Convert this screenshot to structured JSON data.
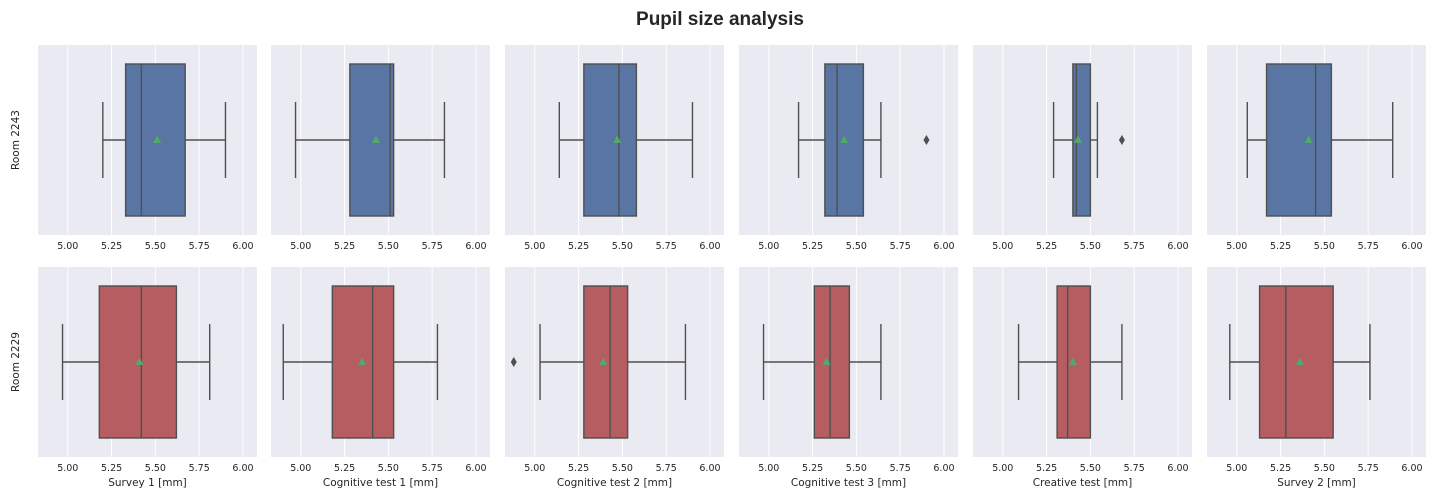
{
  "title": "Pupil size analysis",
  "chart_data": {
    "type": "box",
    "title": "Pupil size analysis",
    "xlim": [
      4.83,
      6.08
    ],
    "xticks": [
      "5.00",
      "5.25",
      "5.50",
      "5.75",
      "6.00"
    ],
    "xtick_values": [
      5.0,
      5.25,
      5.5,
      5.75,
      6.0
    ],
    "grid": true,
    "columns": [
      "Survey 1 [mm]",
      "Cognitive test 1 [mm]",
      "Cognitive test 2 [mm]",
      "Cognitive test 3 [mm]",
      "Creative test [mm]",
      "Survey 2 [mm]"
    ],
    "rows": [
      {
        "label": "Room 2243",
        "color": "#5875a4",
        "boxes": [
          {
            "whisker_low": 5.2,
            "q1": 5.33,
            "median": 5.42,
            "q3": 5.67,
            "whisker_high": 5.9,
            "mean": 5.51,
            "outliers": []
          },
          {
            "whisker_low": 4.97,
            "q1": 5.28,
            "median": 5.51,
            "q3": 5.53,
            "whisker_high": 5.82,
            "mean": 5.43,
            "outliers": []
          },
          {
            "whisker_low": 5.14,
            "q1": 5.28,
            "median": 5.48,
            "q3": 5.58,
            "whisker_high": 5.9,
            "mean": 5.47,
            "outliers": []
          },
          {
            "whisker_low": 5.17,
            "q1": 5.32,
            "median": 5.39,
            "q3": 5.54,
            "whisker_high": 5.64,
            "mean": 5.43,
            "outliers": [
              5.9
            ]
          },
          {
            "whisker_low": 5.29,
            "q1": 5.4,
            "median": 5.42,
            "q3": 5.5,
            "whisker_high": 5.54,
            "mean": 5.43,
            "outliers": [
              5.68
            ]
          },
          {
            "whisker_low": 5.06,
            "q1": 5.17,
            "median": 5.45,
            "q3": 5.54,
            "whisker_high": 5.89,
            "mean": 5.41,
            "outliers": []
          }
        ]
      },
      {
        "label": "Room 2229",
        "color": "#b55d60",
        "boxes": [
          {
            "whisker_low": 4.97,
            "q1": 5.18,
            "median": 5.42,
            "q3": 5.62,
            "whisker_high": 5.81,
            "mean": 5.41,
            "outliers": []
          },
          {
            "whisker_low": 4.9,
            "q1": 5.18,
            "median": 5.41,
            "q3": 5.53,
            "whisker_high": 5.78,
            "mean": 5.35,
            "outliers": []
          },
          {
            "whisker_low": 5.03,
            "q1": 5.28,
            "median": 5.43,
            "q3": 5.53,
            "whisker_high": 5.86,
            "mean": 5.39,
            "outliers": [
              4.88
            ]
          },
          {
            "whisker_low": 4.97,
            "q1": 5.26,
            "median": 5.35,
            "q3": 5.46,
            "whisker_high": 5.64,
            "mean": 5.33,
            "outliers": []
          },
          {
            "whisker_low": 5.09,
            "q1": 5.31,
            "median": 5.37,
            "q3": 5.5,
            "whisker_high": 5.68,
            "mean": 5.4,
            "outliers": []
          },
          {
            "whisker_low": 4.96,
            "q1": 5.13,
            "median": 5.28,
            "q3": 5.55,
            "whisker_high": 5.76,
            "mean": 5.36,
            "outliers": []
          }
        ]
      }
    ],
    "mean_marker_color": "#55a868",
    "line_color": "#4f4f4f",
    "background": "#eaeaf2"
  }
}
